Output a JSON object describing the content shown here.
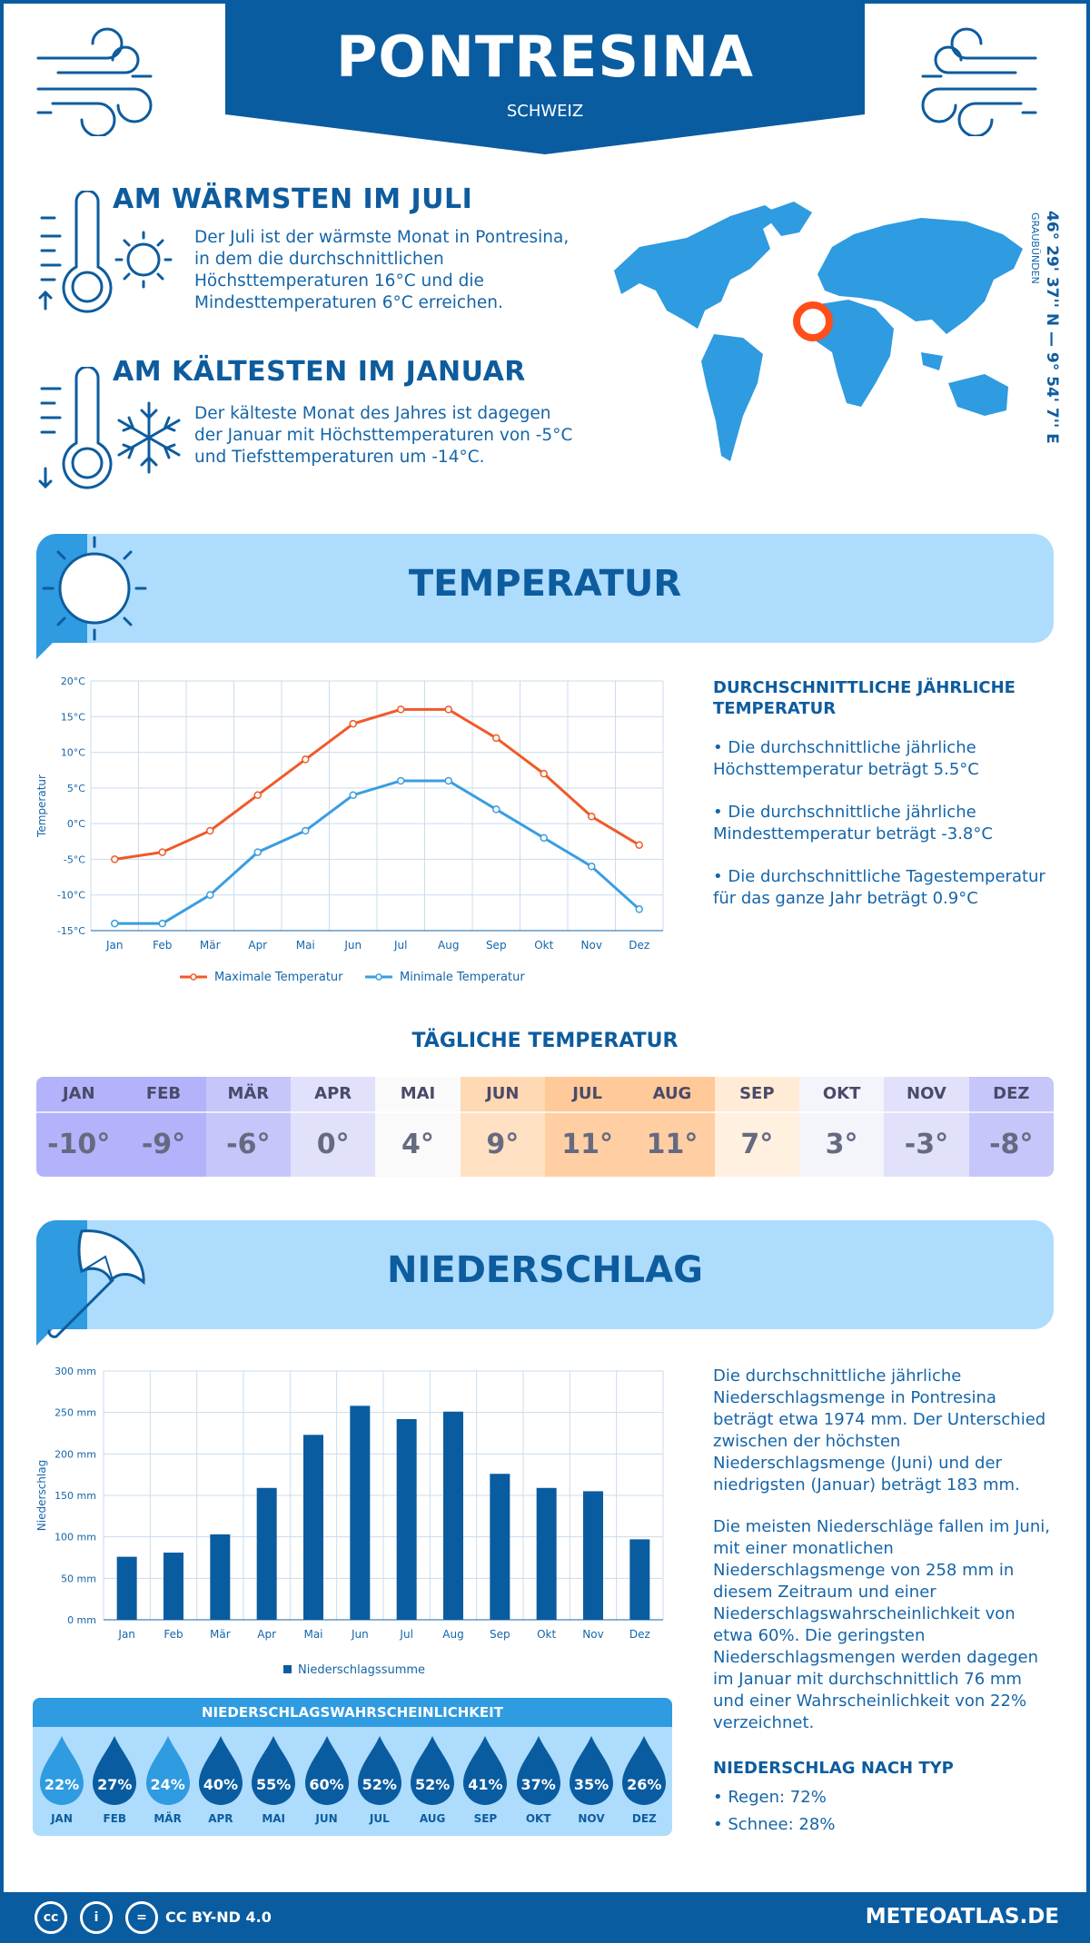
{
  "header": {
    "title": "PONTRESINA",
    "subtitle": "SCHWEIZ"
  },
  "warm": {
    "title": "AM WÄRMSTEN IM JULI",
    "text": [
      "Der Juli ist der wärmste Monat in Pontresina,",
      "in dem die durchschnittlichen",
      "Höchsttemperaturen 16°C und die",
      "Mindesttemperaturen 6°C erreichen."
    ]
  },
  "cold": {
    "title": "AM KÄLTESTEN IM JANUAR",
    "text": [
      "Der kälteste Monat des Jahres ist dagegen",
      "der Januar mit Höchsttemperaturen von -5°C",
      "und Tiefsttemperaturen um -14°C."
    ]
  },
  "coords": {
    "latlon": "46° 29' 37'' N — 9° 54' 7'' E",
    "region": "GRAUBÜNDEN"
  },
  "temp_section": {
    "title": "TEMPERATUR"
  },
  "temp_info": {
    "title": [
      "DURCHSCHNITTLICHE JÄHRLICHE",
      "TEMPERATUR"
    ],
    "b1": [
      "• Die durchschnittliche jährliche",
      "Höchsttemperatur beträgt 5.5°C"
    ],
    "b2": [
      "• Die durchschnittliche jährliche",
      "Mindesttemperatur beträgt -3.8°C"
    ],
    "b3": [
      "• Die durchschnittliche Tagestemperatur",
      "für das ganze Jahr beträgt 0.9°C"
    ]
  },
  "daily": {
    "title": "TÄGLICHE TEMPERATUR",
    "months": [
      "JAN",
      "FEB",
      "MÄR",
      "APR",
      "MAI",
      "JUN",
      "JUL",
      "AUG",
      "SEP",
      "OKT",
      "NOV",
      "DEZ"
    ],
    "values": [
      "-10°",
      "-9°",
      "-6°",
      "0°",
      "4°",
      "9°",
      "11°",
      "11°",
      "7°",
      "3°",
      "-3°",
      "-8°"
    ],
    "head_colors": [
      "#b3b3fb",
      "#b3b3fb",
      "#c6c6fb",
      "#e1e1fb",
      "#fafafa",
      "#ffd9b3",
      "#ffc999",
      "#ffc999",
      "#ffebd6",
      "#f4f4fb",
      "#e1e1fb",
      "#c6c6fb"
    ],
    "cell_colors": [
      "#b3b3fb",
      "#b3b3fb",
      "#c6c6fb",
      "#e1e1fb",
      "#fafafa",
      "#ffe0c2",
      "#ffcfa3",
      "#ffcfa3",
      "#fff0e0",
      "#f4f4fb",
      "#e1e1fb",
      "#c6c6fb"
    ]
  },
  "precip_section": {
    "title": "NIEDERSCHLAG"
  },
  "precip_info": {
    "p1": [
      "Die durchschnittliche jährliche",
      "Niederschlagsmenge in Pontresina",
      "beträgt etwa 1974 mm. Der Unterschied",
      "zwischen der höchsten",
      "Niederschlagsmenge (Juni) und der",
      "niedrigsten (Januar) beträgt 183 mm."
    ],
    "p2": [
      "Die meisten Niederschläge fallen im Juni,",
      "mit einer monatlichen",
      "Niederschlagsmenge von 258 mm in",
      "diesem Zeitraum und einer",
      "Niederschlagswahrscheinlichkeit von",
      "etwa 60%. Die geringsten",
      "Niederschlagsmengen werden dagegen",
      "im Januar mit durchschnittlich 76 mm",
      "und einer Wahrscheinlichkeit von 22%",
      "verzeichnet."
    ],
    "type_title": "NIEDERSCHLAG NACH TYP",
    "rain": "• Regen: 72%",
    "snow": "• Schnee: 28%"
  },
  "probability": {
    "title": "NIEDERSCHLAGSWAHRSCHEINLICHKEIT",
    "months": [
      "JAN",
      "FEB",
      "MÄR",
      "APR",
      "MAI",
      "JUN",
      "JUL",
      "AUG",
      "SEP",
      "OKT",
      "NOV",
      "DEZ"
    ],
    "values": [
      "22%",
      "27%",
      "24%",
      "40%",
      "55%",
      "60%",
      "52%",
      "52%",
      "41%",
      "37%",
      "35%",
      "26%"
    ],
    "colors": [
      "#2f9be0",
      "#0a5ca0",
      "#2f9be0",
      "#0a5ca0",
      "#0a5ca0",
      "#0a5ca0",
      "#0a5ca0",
      "#0a5ca0",
      "#0a5ca0",
      "#0a5ca0",
      "#0a5ca0",
      "#0a5ca0"
    ]
  },
  "footer": {
    "license": "CC BY-ND 4.0",
    "site": "METEOATLAS.DE"
  },
  "chart_data": [
    {
      "type": "line",
      "categories": [
        "Jan",
        "Feb",
        "Mär",
        "Apr",
        "Mai",
        "Jun",
        "Jul",
        "Aug",
        "Sep",
        "Okt",
        "Nov",
        "Dez"
      ],
      "series": [
        {
          "name": "Maximale Temperatur",
          "values": [
            -5,
            -4,
            -1,
            4,
            9,
            14,
            16,
            16,
            12,
            7,
            1,
            -3
          ],
          "color": "#f05a28"
        },
        {
          "name": "Minimale Temperatur",
          "values": [
            -14,
            -14,
            -10,
            -4,
            -1,
            4,
            6,
            6,
            2,
            -2,
            -6,
            -12
          ],
          "color": "#3a9de0"
        }
      ],
      "ylabel": "Temperatur",
      "yticks": [
        "20°C",
        "15°C",
        "10°C",
        "5°C",
        "0°C",
        "-5°C",
        "-10°C",
        "-15°C"
      ],
      "ylim": [
        -15,
        20
      ],
      "grid": true,
      "legend": "bottom"
    },
    {
      "type": "bar",
      "categories": [
        "Jan",
        "Feb",
        "Mär",
        "Apr",
        "Mai",
        "Jun",
        "Jul",
        "Aug",
        "Sep",
        "Okt",
        "Nov",
        "Dez"
      ],
      "series": [
        {
          "name": "Niederschlagssumme",
          "values": [
            76,
            81,
            103,
            159,
            223,
            258,
            242,
            251,
            176,
            159,
            155,
            97
          ],
          "color": "#0a5ca0"
        }
      ],
      "ylabel": "Niederschlag",
      "yticks": [
        "300 mm",
        "250 mm",
        "200 mm",
        "150 mm",
        "100 mm",
        "50 mm",
        "0 mm"
      ],
      "ylim": [
        0,
        300
      ],
      "grid": true,
      "legend": "bottom"
    }
  ]
}
